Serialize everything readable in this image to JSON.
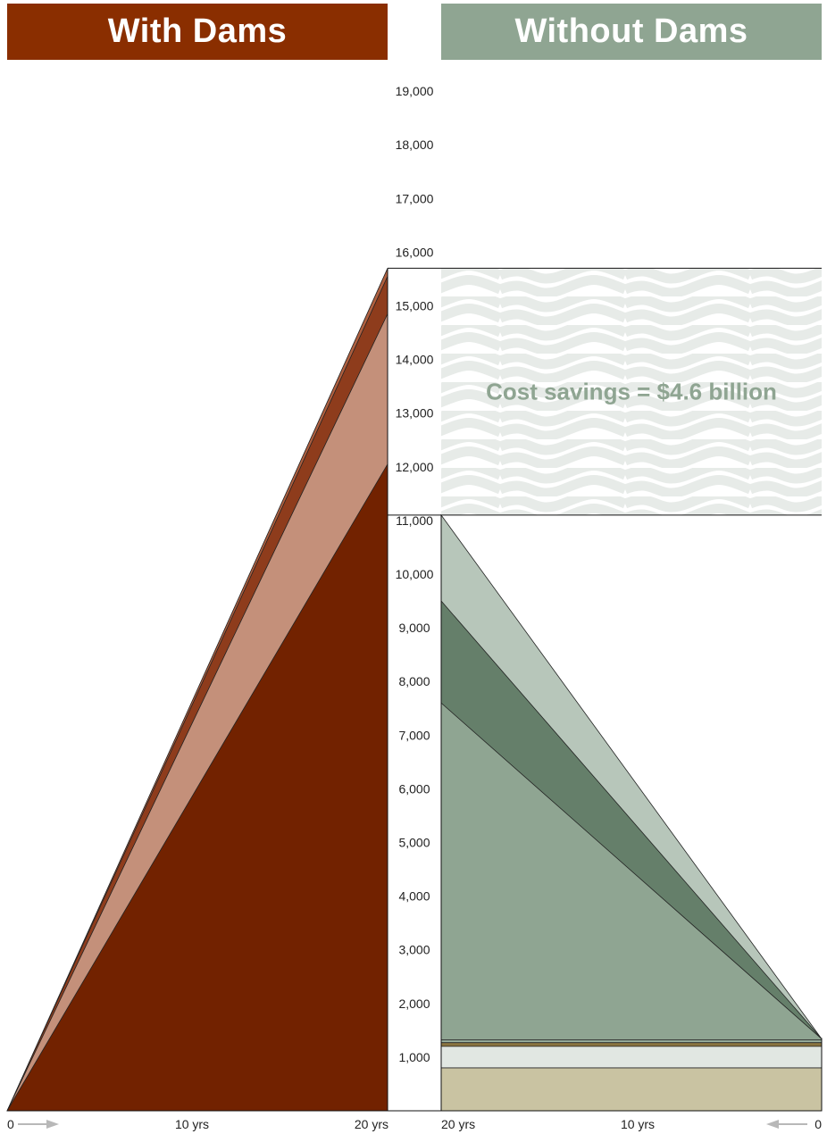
{
  "chart_data": {
    "type": "area",
    "y_ticks": [
      1000,
      2000,
      3000,
      4000,
      5000,
      6000,
      7000,
      8000,
      9000,
      10000,
      11000,
      12000,
      13000,
      14000,
      15000,
      16000,
      17000,
      18000,
      19000
    ],
    "y_tick_labels": [
      "1,000",
      "2,000",
      "3,000",
      "4,000",
      "5,000",
      "6,000",
      "7,000",
      "8,000",
      "9,000",
      "10,000",
      "11,000",
      "12,000",
      "13,000",
      "14,000",
      "15,000",
      "16,000",
      "17,000",
      "18,000",
      "19,000"
    ],
    "ylim": [
      0,
      19500
    ],
    "xlim_years": [
      0,
      20
    ],
    "panels": [
      {
        "title": "With Dams",
        "x_tick_labels": [
          "0",
          "10 yrs",
          "20 yrs"
        ],
        "x_direction": "left-to-right",
        "layers": [
          {
            "color": "#722200",
            "start": 0,
            "end": 12050
          },
          {
            "color": "#c4907a",
            "start": 0,
            "end": 14850
          },
          {
            "color": "#8e3c1c",
            "start": 0,
            "end": 15550
          },
          {
            "color": "#b06040",
            "start": 0,
            "end": 15700
          }
        ],
        "total_at_20_yrs": 15700
      },
      {
        "title": "Without Dams",
        "x_tick_labels": [
          "20 yrs",
          "10 yrs",
          "0"
        ],
        "x_direction": "right-to-left",
        "layers": [
          {
            "color": "#c9c3a2",
            "start": 800,
            "end": 800
          },
          {
            "color": "#e1e7e2",
            "start": 1200,
            "end": 1200
          },
          {
            "color": "#8a7440",
            "start": 1270,
            "end": 1270
          },
          {
            "color": "#9ab09e",
            "start": 1320,
            "end": 1320
          },
          {
            "color": "#8fa592",
            "start": 1340,
            "end": 7600
          },
          {
            "color": "#657f6a",
            "start": 1340,
            "end": 9500
          },
          {
            "color": "#b7c6ba",
            "start": 1340,
            "end": 11100
          }
        ],
        "total_at_20_yrs": 11100
      }
    ],
    "annotation": {
      "text": "Cost savings = $4.6 billion",
      "from": 11100,
      "to": 15700
    }
  }
}
